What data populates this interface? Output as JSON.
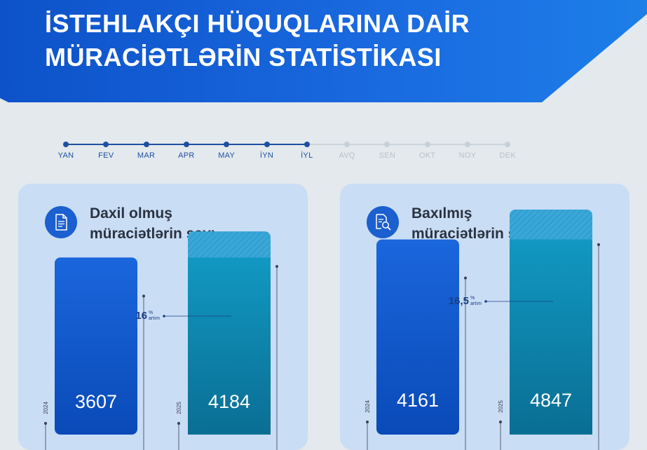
{
  "header": {
    "title_line1": "İSTEHLAKÇI HÜQUQLARINA DAİR",
    "title_line2": "MÜRACİƏTLƏRİN STATİSTİKASI"
  },
  "timeline": {
    "months": [
      "YAN",
      "FEV",
      "MAR",
      "APR",
      "MAY",
      "İYN",
      "İYL",
      "AVQ",
      "SEN",
      "OKT",
      "NOY",
      "DEK"
    ],
    "active_count": 7,
    "active_color": "#1f4fa0",
    "inactive_color": "#c6d0d8"
  },
  "panels": [
    {
      "title_line1": "Daxil olmuş",
      "title_line2": "müraciətlərin sayı",
      "icon": "document-icon"
    },
    {
      "title_line1": "Baxılmış",
      "title_line2": "müraciətlərin sayı",
      "icon": "document-search-icon"
    }
  ],
  "chart_data": [
    {
      "type": "bar",
      "categories": [
        "2024",
        "2025"
      ],
      "values": [
        3607,
        4184
      ],
      "value_labels": [
        "3607",
        "4184"
      ],
      "increase_value": "16",
      "increase_unit": "%",
      "increase_word": "artım",
      "colors": {
        "bar_2024": "#1459d6",
        "bar_2025": "#0d8fb4",
        "increase_hatch": "#39a7d8"
      }
    },
    {
      "type": "bar",
      "categories": [
        "2024",
        "2025"
      ],
      "values": [
        4161,
        4847
      ],
      "value_labels": [
        "4161",
        "4847"
      ],
      "increase_value": "16,5",
      "increase_unit": "%",
      "increase_word": "artım",
      "colors": {
        "bar_2024": "#1459d6",
        "bar_2025": "#0d8fb4",
        "increase_hatch": "#39a7d8"
      }
    }
  ]
}
